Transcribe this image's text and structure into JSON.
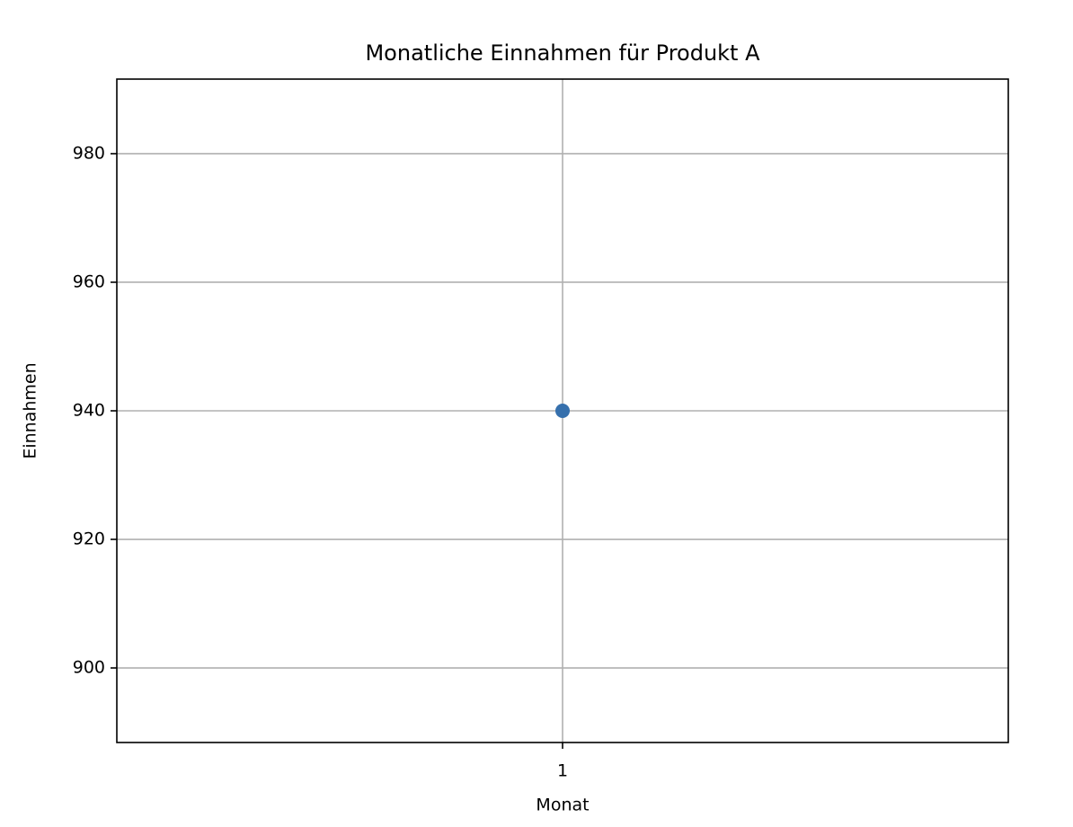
{
  "chart_data": {
    "type": "line",
    "title": "Monatliche Einnahmen für Produkt A",
    "x_label": "Monat",
    "y_label": "Einnahmen",
    "x": [
      1
    ],
    "series": [
      {
        "name": "Produkt A",
        "color": "#3670ad",
        "values": [
          940
        ]
      }
    ],
    "xlim": [
      0.945,
      1.055
    ],
    "xticks": [
      1
    ],
    "ylim": [
      888.4,
      991.6
    ],
    "yticks": [
      900,
      920,
      940,
      960,
      980
    ],
    "grid": true,
    "marker": true
  }
}
